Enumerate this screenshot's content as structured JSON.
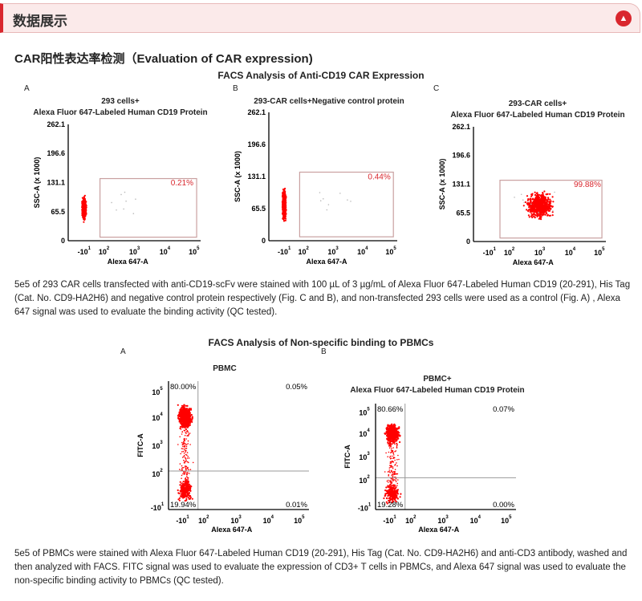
{
  "header": {
    "title": "数据展示",
    "toggle_icon": "chevron-up-icon"
  },
  "section_title": "CAR阳性表达率检测（Evaluation of CAR expression)",
  "chart_data": [
    {
      "type": "scatter",
      "group": "car",
      "title": "FACS Analysis of Anti-CD19 CAR Expression",
      "panels": [
        {
          "label": "A",
          "title_lines": [
            "293 cells+",
            "Alexa Fluor 647-Labeled Human CD19 Protein"
          ],
          "xlabel": "Alexa 647-A",
          "ylabel": "SSC-A (x 1000)",
          "yticks": [
            "0",
            "65.5",
            "131.1",
            "196.6",
            "262.1"
          ],
          "xticks": [
            {
              "base": "-10",
              "exp": "1"
            },
            {
              "base": "10",
              "exp": "2"
            },
            {
              "base": "10",
              "exp": "3"
            },
            {
              "base": "10",
              "exp": "4"
            },
            {
              "base": "10",
              "exp": "5"
            }
          ],
          "gate_percent": "0.21%",
          "cluster_center_log": 0.3,
          "cluster_ssc": [
            40,
            105
          ]
        },
        {
          "label": "B",
          "title_lines": [
            "293-CAR cells+Negative control protein"
          ],
          "xlabel": "Alexa 647-A",
          "ylabel": "SSC-A (x 1000)",
          "yticks": [
            "0",
            "65.5",
            "131.1",
            "196.6",
            "262.1"
          ],
          "xticks": [
            {
              "base": "-10",
              "exp": "1"
            },
            {
              "base": "10",
              "exp": "2"
            },
            {
              "base": "10",
              "exp": "3"
            },
            {
              "base": "10",
              "exp": "4"
            },
            {
              "base": "10",
              "exp": "5"
            }
          ],
          "gate_percent": "0.44%",
          "cluster_center_log": 0.3,
          "cluster_ssc": [
            35,
            115
          ]
        },
        {
          "label": "C",
          "title_lines": [
            "293-CAR cells+",
            "Alexa Fluor 647-Labeled Human CD19 Protein"
          ],
          "xlabel": "Alexa 647-A",
          "ylabel": "SSC-A (x 1000)",
          "yticks": [
            "0",
            "65.5",
            "131.1",
            "196.6",
            "262.1"
          ],
          "xticks": [
            {
              "base": "-10",
              "exp": "1"
            },
            {
              "base": "10",
              "exp": "2"
            },
            {
              "base": "10",
              "exp": "3"
            },
            {
              "base": "10",
              "exp": "4"
            },
            {
              "base": "10",
              "exp": "5"
            }
          ],
          "gate_percent": "99.88%",
          "cluster_center_log": 3.0,
          "cluster_ssc": [
            45,
            120
          ]
        }
      ]
    },
    {
      "type": "scatter",
      "group": "pbmc",
      "title": "FACS Analysis of Non-specific binding to PBMCs",
      "panels": [
        {
          "label": "A",
          "title_lines": [
            "PBMC"
          ],
          "xlabel": "Alexa 647-A",
          "ylabel": "FITC-A",
          "yticks": [
            {
              "base": "-10",
              "exp": "1"
            },
            {
              "base": "10",
              "exp": "2"
            },
            {
              "base": "10",
              "exp": "3"
            },
            {
              "base": "10",
              "exp": "4"
            },
            {
              "base": "10",
              "exp": "5"
            }
          ],
          "xticks": [
            {
              "base": "-10",
              "exp": "1"
            },
            {
              "base": "10",
              "exp": "2"
            },
            {
              "base": "10",
              "exp": "3"
            },
            {
              "base": "10",
              "exp": "4"
            },
            {
              "base": "10",
              "exp": "5"
            }
          ],
          "quadrants": {
            "UL": "80.00%",
            "UR": "0.05%",
            "LL": "19.94%",
            "LR": "0.01%"
          }
        },
        {
          "label": "B",
          "title_lines": [
            "PBMC+",
            "Alexa Fluor 647-Labeled Human CD19 Protein"
          ],
          "xlabel": "Alexa 647-A",
          "ylabel": "FITC-A",
          "yticks": [
            {
              "base": "-10",
              "exp": "1"
            },
            {
              "base": "10",
              "exp": "2"
            },
            {
              "base": "10",
              "exp": "3"
            },
            {
              "base": "10",
              "exp": "4"
            },
            {
              "base": "10",
              "exp": "5"
            }
          ],
          "xticks": [
            {
              "base": "-10",
              "exp": "1"
            },
            {
              "base": "10",
              "exp": "2"
            },
            {
              "base": "10",
              "exp": "3"
            },
            {
              "base": "10",
              "exp": "4"
            },
            {
              "base": "10",
              "exp": "5"
            }
          ],
          "quadrants": {
            "UL": "80.66%",
            "UR": "0.07%",
            "LL": "19.28%",
            "LR": "0.00%"
          }
        }
      ]
    }
  ],
  "paragraphs": [
    "5e5 of 293 CAR cells transfected with anti-CD19-scFv were stained with 100 µL of 3 µg/mL of Alexa Fluor 647-Labeled Human CD19 (20-291), His Tag (Cat. No. CD9-HA2H6) and negative control protein respectively (Fig. C and B), and non-transfected 293 cells were used as a control (Fig. A) , Alexa 647 signal was used to evaluate the binding activity (QC tested).",
    "5e5 of PBMCs were stained with Alexa Fluor 647-Labeled Human CD19 (20-291), His Tag (Cat. No. CD9-HA2H6) and anti-CD3 antibody, washed and then analyzed with FACS. FITC signal was used to evaluate the expression of CD3+ T cells in PBMCs, and Alexa 647 signal was used to evaluate the non-specific binding activity to PBMCs (QC tested)."
  ],
  "colors": {
    "accent": "#d9272e",
    "dots": "#ff0000",
    "gate": "#c9a0a0",
    "gate_text": "#d9272e"
  }
}
